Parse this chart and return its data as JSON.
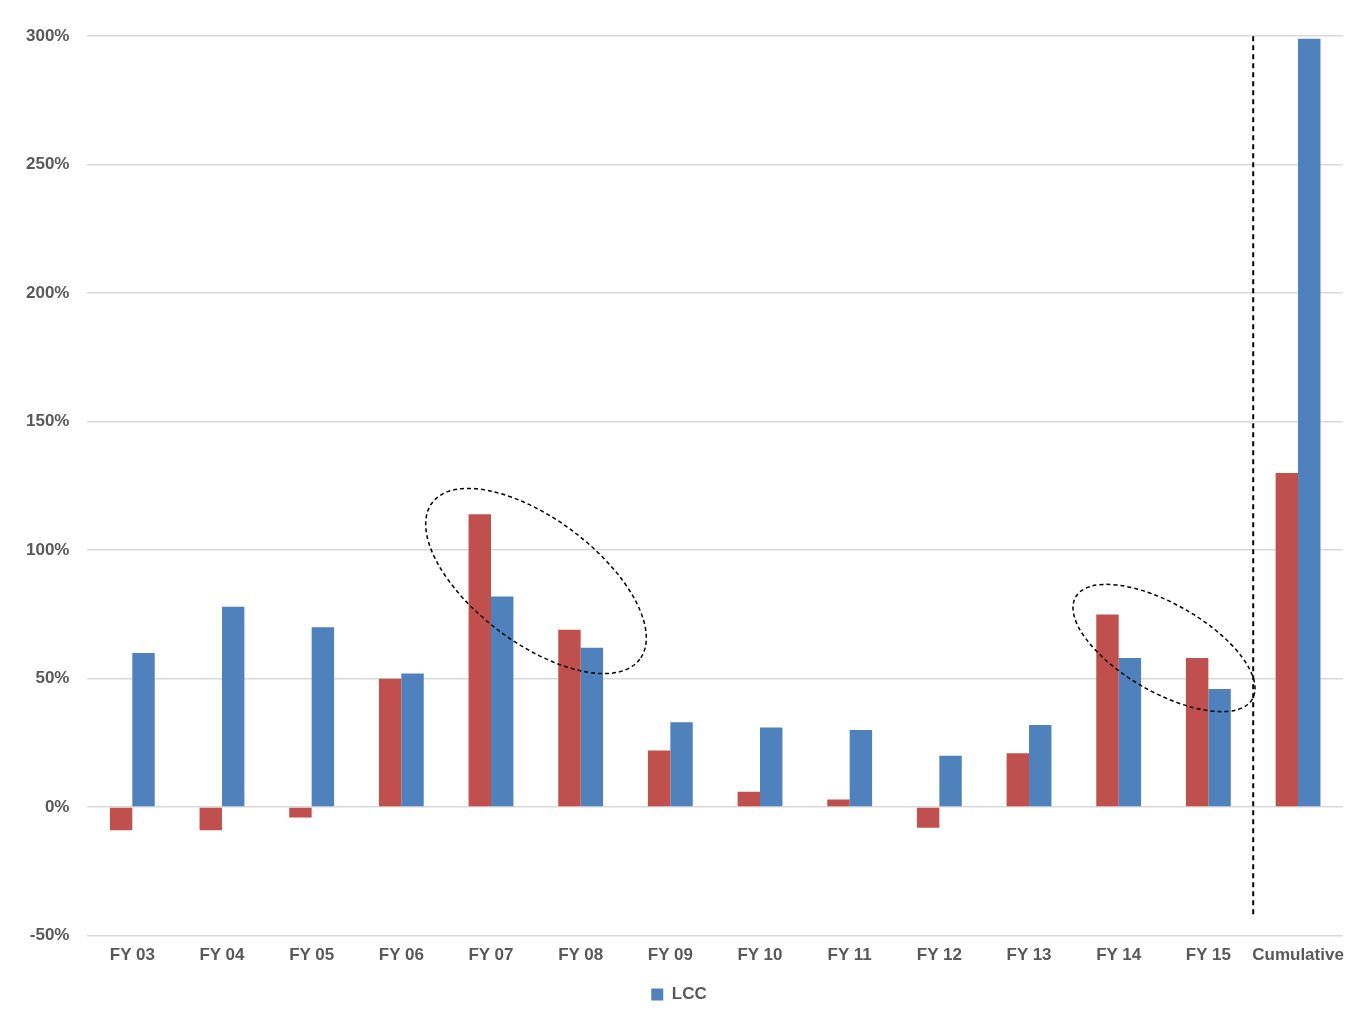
{
  "chart_data": {
    "type": "bar",
    "categories": [
      "FY 03",
      "FY 04",
      "FY 05",
      "FY 06",
      "FY 07",
      "FY 08",
      "FY 09",
      "FY 10",
      "FY 11",
      "FY 12",
      "FY 13",
      "FY 14",
      "FY 15",
      "Cumulative"
    ],
    "series": [
      {
        "color": "#c0504d",
        "values": [
          -9,
          -9,
          -4,
          50,
          114,
          69,
          22,
          6,
          3,
          -8,
          21,
          75,
          58,
          130
        ]
      },
      {
        "name": "LCC",
        "color": "#4f81bd",
        "values": [
          60,
          78,
          70,
          52,
          82,
          62,
          33,
          31,
          30,
          20,
          32,
          58,
          46,
          299
        ]
      }
    ],
    "ylim": [
      -50,
      300
    ],
    "yticks": [
      {
        "value": -50,
        "label": "-50%"
      },
      {
        "value": 0,
        "label": "0%"
      },
      {
        "value": 50,
        "label": "50%"
      },
      {
        "value": 100,
        "label": "100%"
      },
      {
        "value": 150,
        "label": "150%"
      },
      {
        "value": 200,
        "label": "200%"
      },
      {
        "value": 250,
        "label": "250%"
      },
      {
        "value": 300,
        "label": "300%"
      }
    ],
    "ref_lines": [
      {
        "axis": "x",
        "value": "Cumulative",
        "color": "#000000",
        "line_style": "dashed"
      }
    ],
    "grid": "y",
    "legend": "bottom"
  }
}
